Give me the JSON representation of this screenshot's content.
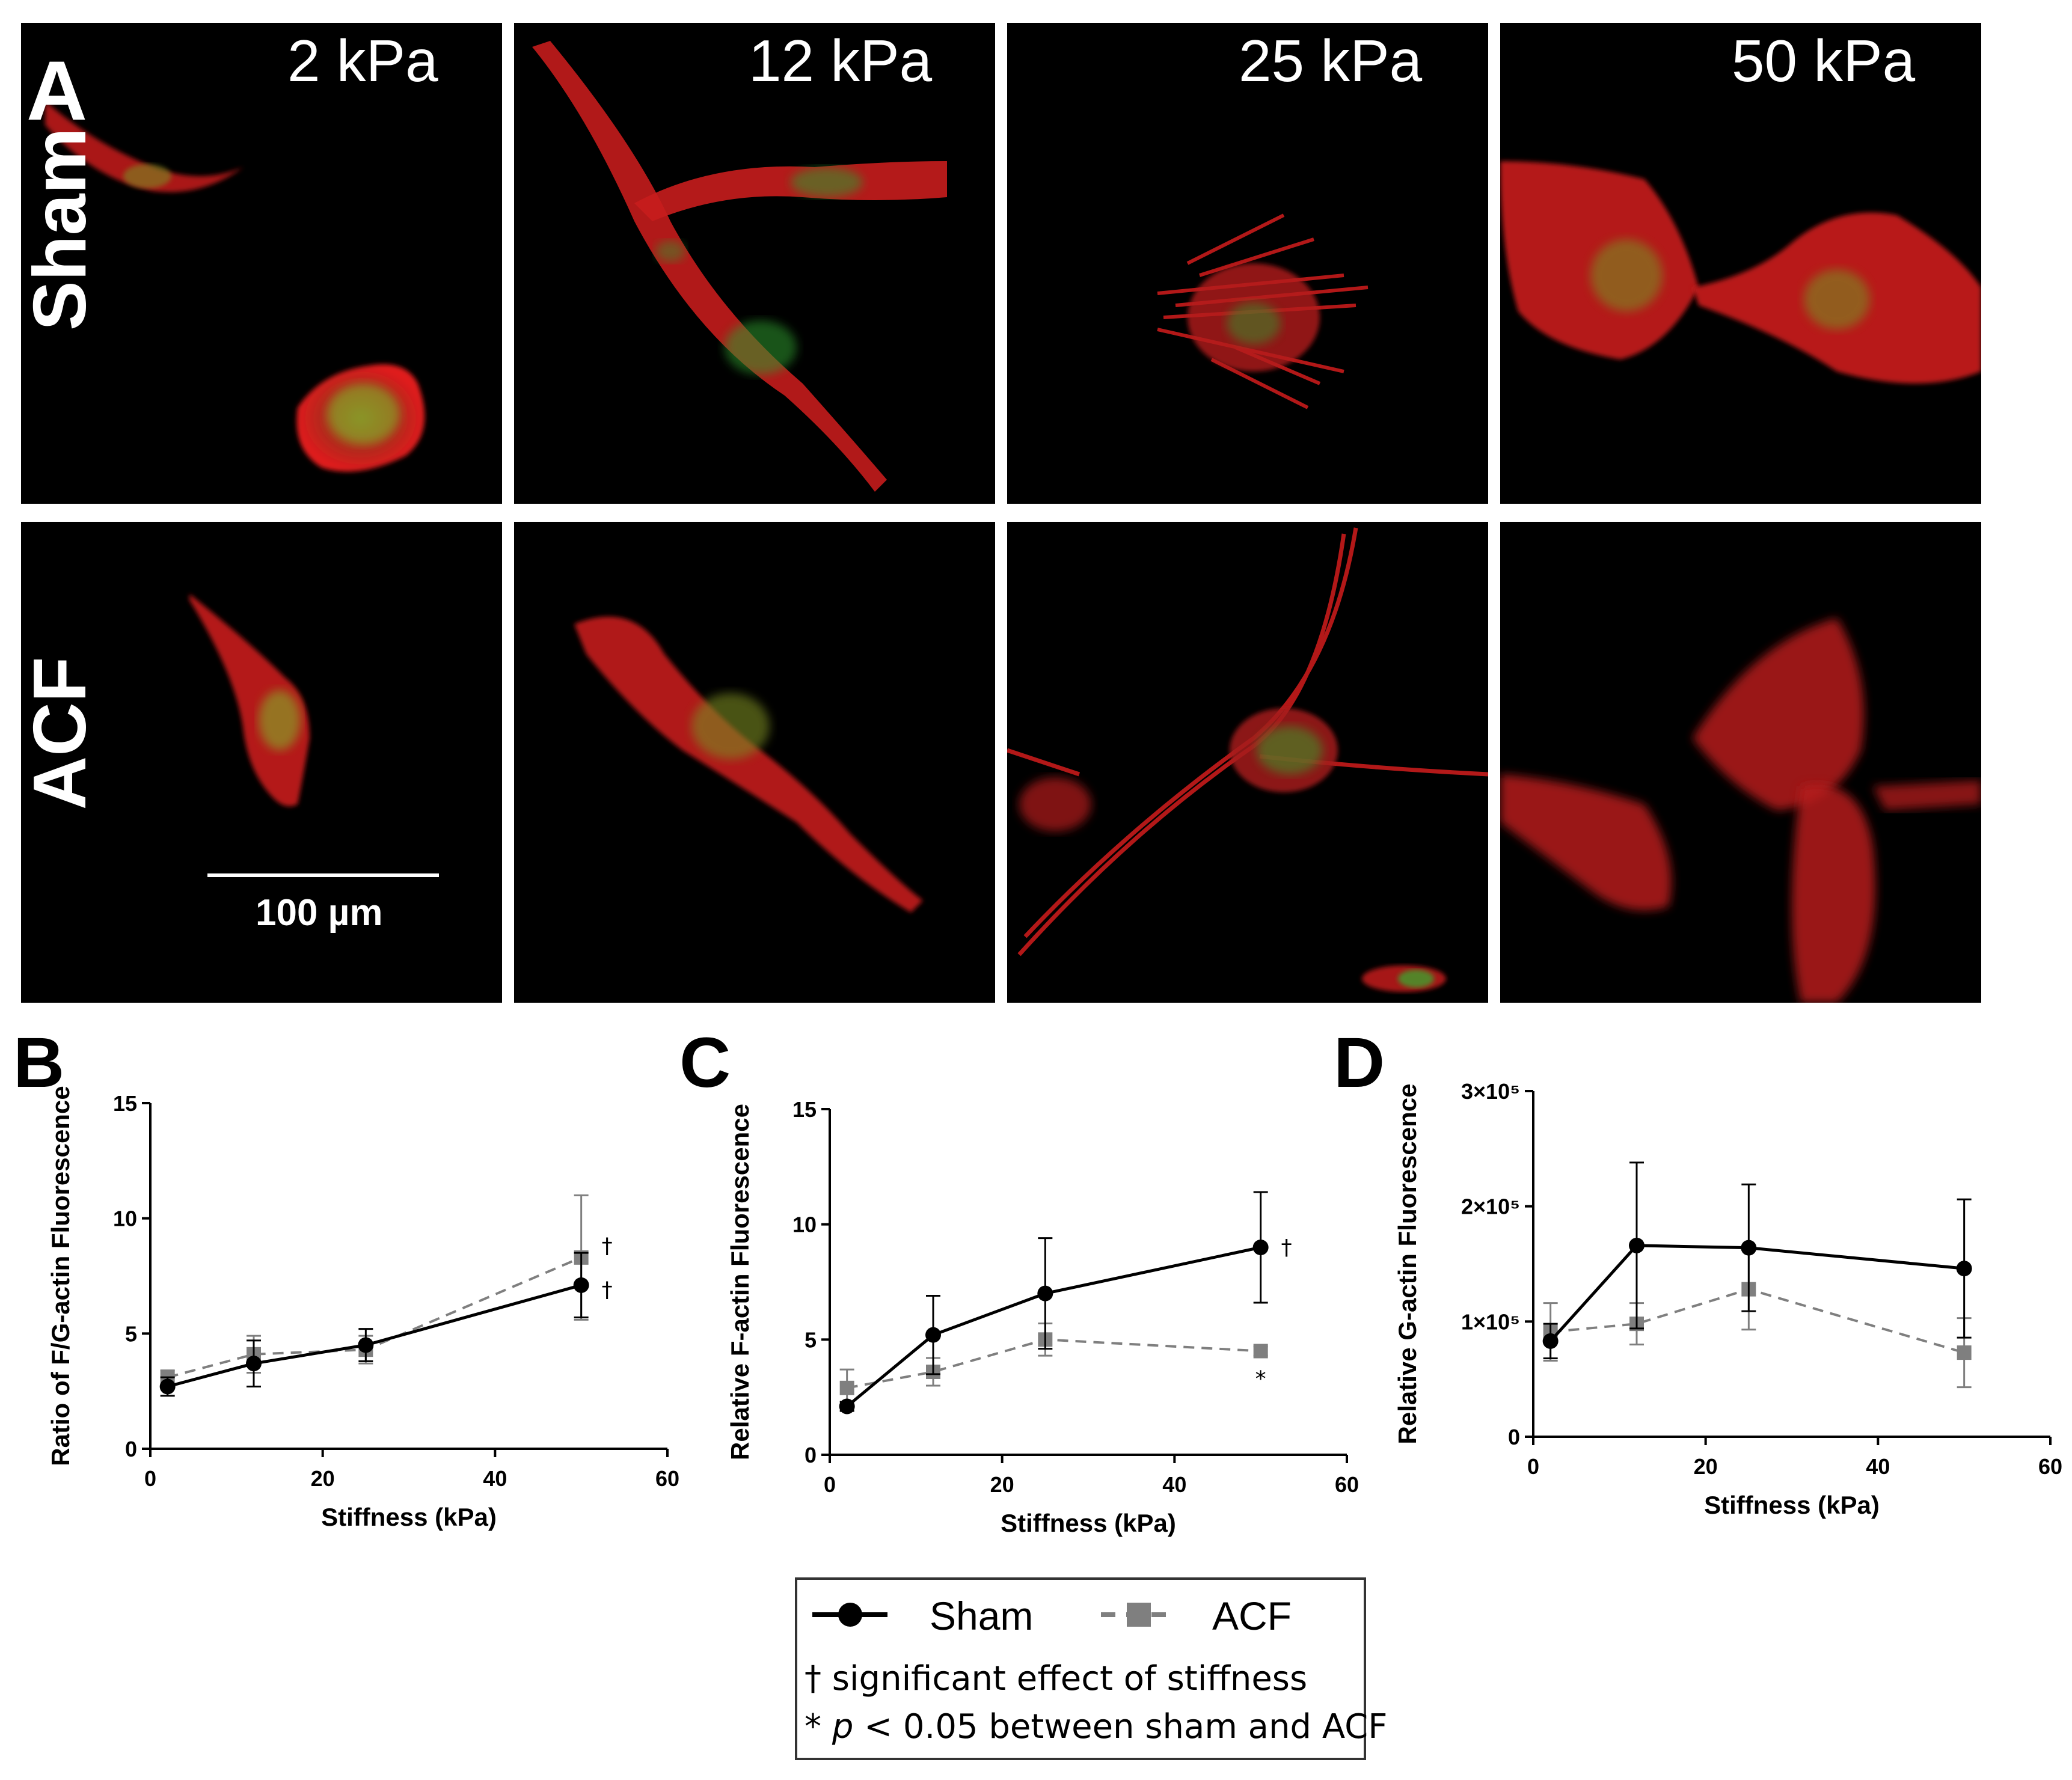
{
  "panel_a": {
    "letter": "A",
    "column_labels": [
      "2 kPa",
      "12 kPa",
      "25 kPa",
      "50 kPa"
    ],
    "row_labels": [
      "Sham",
      "ACF"
    ],
    "scale_bar_label": "100 µm",
    "colors": {
      "actin_red": "#e01a1a",
      "g_actin_green": "#33c233",
      "background": "#000000"
    }
  },
  "panels": {
    "B": {
      "letter": "B",
      "ylabel": "Ratio of  F/G-actin Fluorescence"
    },
    "C": {
      "letter": "C",
      "ylabel": "Relative F-actin Fluorescence"
    },
    "D": {
      "letter": "D",
      "ylabel": "Relative G-actin Fluorescence"
    }
  },
  "legend": {
    "sham_label": "Sham",
    "acf_label": "ACF",
    "note1": "† significant effect of stiffness",
    "note2_prefix": "* ",
    "note2_italic": "p",
    "note2_rest": " < 0.05 between sham and ACF"
  },
  "chart_data": [
    {
      "id": "B",
      "type": "line",
      "xlabel": "Stiffness (kPa)",
      "ylabel": "Ratio of  F/G-actin Fluorescence",
      "xlim": [
        0,
        60
      ],
      "ylim": [
        0,
        15
      ],
      "xticks": [
        0,
        20,
        40,
        60
      ],
      "yticks": [
        0,
        5,
        10,
        15
      ],
      "ytick_labels": [
        "0",
        "5",
        "10",
        "15"
      ],
      "x": [
        2,
        12,
        25,
        50
      ],
      "series": [
        {
          "name": "Sham",
          "color": "#000000",
          "marker": "circle",
          "dash": "solid",
          "values": [
            2.7,
            3.7,
            4.5,
            7.1
          ],
          "err": [
            0.4,
            1.0,
            0.7,
            1.4
          ]
        },
        {
          "name": "ACF",
          "color": "#7f7f7f",
          "marker": "square",
          "dash": "dashed",
          "values": [
            3.1,
            4.1,
            4.3,
            8.3
          ],
          "err": [
            0.3,
            0.8,
            0.6,
            2.7
          ]
        }
      ],
      "annotations": [
        {
          "text": "†",
          "x": 53,
          "y": 8.8
        },
        {
          "text": "†",
          "x": 53,
          "y": 6.9
        }
      ]
    },
    {
      "id": "C",
      "type": "line",
      "xlabel": "Stiffness (kPa)",
      "ylabel": "Relative F-actin Fluorescence",
      "xlim": [
        0,
        60
      ],
      "ylim": [
        0,
        15
      ],
      "xticks": [
        0,
        20,
        40,
        60
      ],
      "yticks": [
        0,
        5,
        10,
        15
      ],
      "ytick_labels": [
        "0",
        "5",
        "10",
        "15"
      ],
      "x": [
        2,
        12,
        25,
        50
      ],
      "series": [
        {
          "name": "Sham",
          "color": "#000000",
          "marker": "circle",
          "dash": "solid",
          "values": [
            2.1,
            5.2,
            7.0,
            9.0
          ],
          "err": [
            0.2,
            1.7,
            2.4,
            2.4
          ]
        },
        {
          "name": "ACF",
          "color": "#7f7f7f",
          "marker": "square",
          "dash": "dashed",
          "values": [
            2.9,
            3.6,
            5.0,
            4.5
          ],
          "err": [
            0.8,
            0.6,
            0.7,
            0.2
          ]
        }
      ],
      "annotations": [
        {
          "text": "†",
          "x": 53,
          "y": 9.0
        },
        {
          "text": "*",
          "x": 50,
          "y": 3.3
        }
      ]
    },
    {
      "id": "D",
      "type": "line",
      "xlabel": "Stiffness (kPa)",
      "ylabel": "Relative G-actin Fluorescence",
      "xlim": [
        0,
        60
      ],
      "ylim": [
        0,
        300000
      ],
      "xticks": [
        0,
        20,
        40,
        60
      ],
      "yticks": [
        0,
        100000,
        200000,
        300000
      ],
      "ytick_labels": [
        "0",
        "1×10⁵",
        "2×10⁵",
        "3×10⁵"
      ],
      "x": [
        2,
        12,
        25,
        50
      ],
      "series": [
        {
          "name": "Sham",
          "color": "#000000",
          "marker": "circle",
          "dash": "solid",
          "values": [
            83000,
            166000,
            164000,
            146000
          ],
          "err": [
            15000,
            72000,
            55000,
            60000
          ]
        },
        {
          "name": "ACF",
          "color": "#7f7f7f",
          "marker": "square",
          "dash": "dashed",
          "values": [
            91000,
            98000,
            128000,
            73000
          ],
          "err": [
            25000,
            18000,
            35000,
            30000
          ]
        }
      ],
      "annotations": []
    }
  ]
}
